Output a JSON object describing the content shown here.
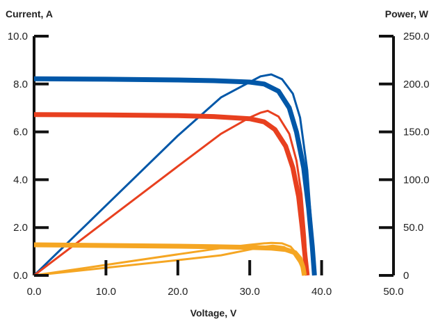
{
  "chart_data": {
    "type": "line",
    "xlabel": "Voltage, V",
    "ylabel_left": "Current, A",
    "ylabel_right": "Power, W",
    "xlim": [
      0,
      50
    ],
    "ylim_left": [
      0,
      10
    ],
    "ylim_right": [
      0,
      250
    ],
    "x_ticks": [
      "0.0",
      "10.0",
      "20.0",
      "30.0",
      "40.0",
      "50.0"
    ],
    "y_left_ticks": [
      "0.0",
      "2.0",
      "4.0",
      "6.0",
      "8.0",
      "10.0"
    ],
    "y_right_ticks": [
      "0",
      "50.0",
      "100.0",
      "150.0",
      "200.0",
      "250.0"
    ],
    "grid": false,
    "series": [
      {
        "kind": "current",
        "axis": "left",
        "color": "#0057a8",
        "points": [
          [
            0,
            8.22
          ],
          [
            10,
            8.2
          ],
          [
            20,
            8.17
          ],
          [
            25,
            8.14
          ],
          [
            30,
            8.08
          ],
          [
            32,
            8.0
          ],
          [
            34,
            7.7
          ],
          [
            35.5,
            7.0
          ],
          [
            36.5,
            6.0
          ],
          [
            37.5,
            4.5
          ],
          [
            38.2,
            2.8
          ],
          [
            38.7,
            1.2
          ],
          [
            39.0,
            0
          ]
        ]
      },
      {
        "kind": "power",
        "axis": "right",
        "color": "#0057a8",
        "points": [
          [
            0,
            0
          ],
          [
            10,
            73
          ],
          [
            20,
            146
          ],
          [
            26,
            186
          ],
          [
            30,
            202
          ],
          [
            31.5,
            208
          ],
          [
            33,
            210
          ],
          [
            34.5,
            205
          ],
          [
            36,
            190
          ],
          [
            37,
            165
          ],
          [
            38,
            110
          ],
          [
            38.6,
            50
          ],
          [
            39.0,
            0
          ]
        ]
      },
      {
        "kind": "current",
        "axis": "left",
        "color": "#e8401f",
        "points": [
          [
            0,
            6.72
          ],
          [
            10,
            6.71
          ],
          [
            20,
            6.68
          ],
          [
            25,
            6.64
          ],
          [
            30,
            6.55
          ],
          [
            32,
            6.42
          ],
          [
            33.5,
            6.1
          ],
          [
            35,
            5.4
          ],
          [
            36,
            4.5
          ],
          [
            36.8,
            3.3
          ],
          [
            37.3,
            2.0
          ],
          [
            37.7,
            0.8
          ],
          [
            38.0,
            0
          ]
        ]
      },
      {
        "kind": "power",
        "axis": "right",
        "color": "#e8401f",
        "points": [
          [
            0,
            0
          ],
          [
            10,
            57
          ],
          [
            20,
            114
          ],
          [
            26,
            148
          ],
          [
            30,
            165
          ],
          [
            31.5,
            170
          ],
          [
            32.5,
            172
          ],
          [
            34,
            166
          ],
          [
            35.5,
            148
          ],
          [
            36.5,
            120
          ],
          [
            37.2,
            85
          ],
          [
            37.7,
            40
          ],
          [
            38.0,
            0
          ]
        ]
      },
      {
        "kind": "current",
        "axis": "left",
        "color": "#f5a623",
        "points": [
          [
            0,
            1.28
          ],
          [
            10,
            1.25
          ],
          [
            20,
            1.22
          ],
          [
            25,
            1.2
          ],
          [
            30,
            1.17
          ],
          [
            33,
            1.14
          ],
          [
            35,
            1.08
          ],
          [
            36.3,
            0.95
          ],
          [
            37.0,
            0.7
          ],
          [
            37.4,
            0.35
          ],
          [
            37.6,
            0
          ]
        ]
      },
      {
        "kind": "power",
        "axis": "right",
        "color": "#f5a623",
        "points": [
          [
            0,
            0
          ],
          [
            10,
            11
          ],
          [
            20,
            22
          ],
          [
            26,
            28.5
          ],
          [
            30,
            32
          ],
          [
            32,
            33.5
          ],
          [
            33,
            34
          ],
          [
            34.5,
            33.5
          ],
          [
            35.7,
            30
          ],
          [
            36.6,
            22
          ],
          [
            37.2,
            11
          ],
          [
            37.6,
            0
          ]
        ]
      },
      {
        "kind": "power",
        "axis": "right",
        "color": "#f5a623",
        "points": [
          [
            0,
            0
          ],
          [
            10,
            8
          ],
          [
            20,
            16
          ],
          [
            26,
            21
          ],
          [
            30,
            27
          ],
          [
            32,
            30
          ],
          [
            33.2,
            31
          ],
          [
            34.8,
            29.5
          ],
          [
            36,
            24
          ],
          [
            36.9,
            14
          ],
          [
            37.4,
            6
          ],
          [
            37.6,
            0
          ]
        ]
      }
    ]
  }
}
